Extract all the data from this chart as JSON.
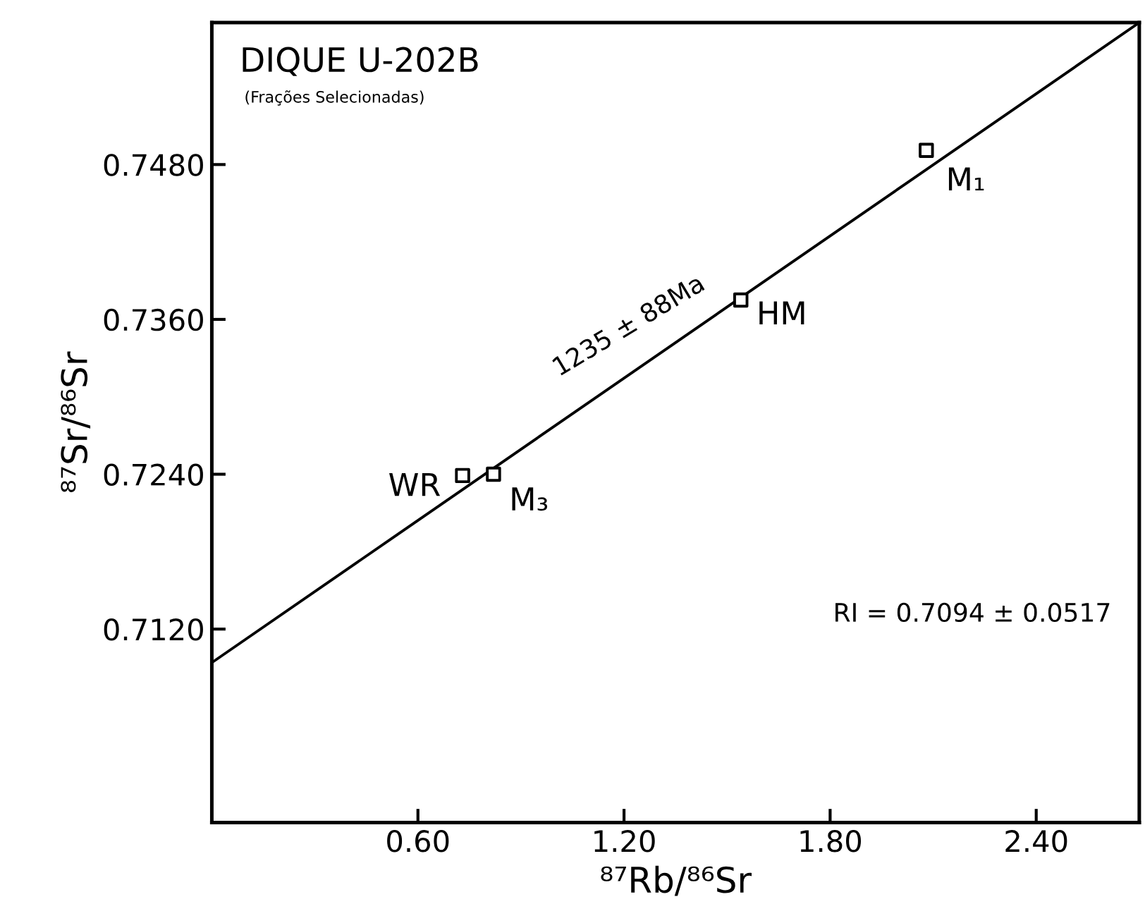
{
  "chart_data": {
    "type": "scatter",
    "title": "DIQUE U-202B",
    "subtitle": "(Frações Selecionadas)",
    "xlabel": "⁸⁷Rb/⁸⁶Sr",
    "ylabel": "⁸⁷Sr/⁸⁶Sr",
    "xlim": [
      0,
      2.7
    ],
    "ylim": [
      0.697,
      0.759
    ],
    "xticks": [
      {
        "value": 0.6,
        "label": "0.60"
      },
      {
        "value": 1.2,
        "label": "1.20"
      },
      {
        "value": 1.8,
        "label": "1.80"
      },
      {
        "value": 2.4,
        "label": "2.40"
      }
    ],
    "yticks": [
      {
        "value": 0.712,
        "label": "0.7120"
      },
      {
        "value": 0.724,
        "label": "0.7240"
      },
      {
        "value": 0.736,
        "label": "0.7360"
      },
      {
        "value": 0.748,
        "label": "0.7480"
      }
    ],
    "grid": false,
    "series": [
      {
        "color": "#000000",
        "marker": "square",
        "x": [
          0.73,
          0.82,
          1.54,
          2.08
        ],
        "values": [
          0.7239,
          0.724,
          0.7375,
          0.7491
        ]
      },
      {
        "type": "line",
        "marker": "none",
        "color": "#000000",
        "x": [
          0,
          2.7
        ],
        "values": [
          0.7094,
          0.759
        ]
      }
    ],
    "annotations": [
      "1235 ± 88Ma",
      "RI = 0.7094 ± 0.0517",
      {
        "text": "WR",
        "x": 0.73,
        "y": 0.7239
      },
      {
        "text": "M₃",
        "x": 0.82,
        "y": 0.724
      },
      {
        "text": "HM",
        "x": 1.54,
        "y": 0.7375
      },
      {
        "text": "M₁",
        "x": 2.08,
        "y": 0.7491
      }
    ]
  }
}
